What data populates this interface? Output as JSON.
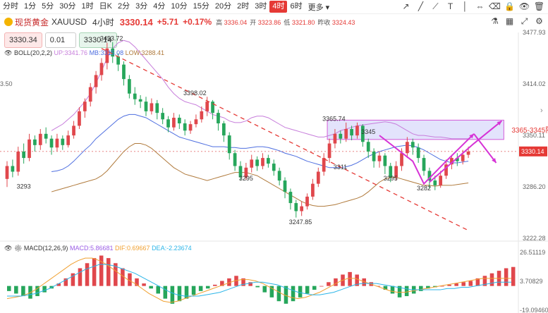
{
  "toolbar": {
    "timeframes": [
      "分时",
      "1分",
      "5分",
      "30分",
      "1时",
      "日K",
      "2分",
      "3分",
      "4分",
      "10分",
      "15分",
      "20分",
      "2时",
      "3时",
      "4时",
      "6时"
    ],
    "active_index": 14,
    "more_label": "更多",
    "tools": [
      "pen-icon",
      "line-icon",
      "ray-icon",
      "text-icon",
      "vertical-line-icon",
      "measure-icon",
      "eraser-icon",
      "lock-icon",
      "eye-icon",
      "trash-icon"
    ]
  },
  "header": {
    "symbol_name": "现货黄金",
    "symbol_code": "XAUUSD",
    "period": "4小时",
    "price": "3330.14",
    "change": "+5.71",
    "change_pct": "+0.17%",
    "ohlc": [
      {
        "label": "高",
        "value": "3336.04"
      },
      {
        "label": "开",
        "value": "3323.86"
      },
      {
        "label": "低",
        "value": "3321.80"
      },
      {
        "label": "昨收",
        "value": "3324.43"
      }
    ]
  },
  "trade": {
    "sell": "3330.34",
    "qty": "0.01",
    "buy": "3330.14"
  },
  "boll_legend": {
    "name": "BOLL(20,2,2)",
    "up": "UP:3341.76",
    "mb": "MB:3315.08",
    "low": "LOW:3288.41",
    "up_color": "#c77ddb",
    "mb_color": "#4f6fe0",
    "low_color": "#b07a3c"
  },
  "macd_legend": {
    "name": "MACD(12,26,9)",
    "macd": "MACD:5.86681",
    "dif": "DIF:0.69667",
    "dea": "DEA:-2.23674",
    "macd_color": "#9b5de5",
    "dif_color": "#f0a030",
    "dea_color": "#2bb5e8"
  },
  "chart_data": {
    "type": "candlestick",
    "price_axis": {
      "ticks": [
        "3477.93",
        "3414.02",
        "3350.11",
        "3286.20",
        "3222.28"
      ],
      "current_label": "3330.14",
      "left_partial_label": "3.50"
    },
    "price_range": [
      3222.28,
      3477.93
    ],
    "candles": [
      [
        3296,
        3312,
        3286,
        3318
      ],
      [
        3312,
        3305,
        3298,
        3320
      ],
      [
        3305,
        3330,
        3300,
        3336
      ],
      [
        3330,
        3322,
        3315,
        3340
      ],
      [
        3322,
        3345,
        3318,
        3352
      ],
      [
        3345,
        3338,
        3330,
        3350
      ],
      [
        3338,
        3352,
        3332,
        3358
      ],
      [
        3352,
        3346,
        3340,
        3360
      ],
      [
        3346,
        3335,
        3326,
        3350
      ],
      [
        3335,
        3346,
        3330,
        3352
      ],
      [
        3346,
        3338,
        3332,
        3350
      ],
      [
        3338,
        3350,
        3335,
        3356
      ],
      [
        3350,
        3362,
        3346,
        3368
      ],
      [
        3362,
        3380,
        3358,
        3385
      ],
      [
        3380,
        3392,
        3372,
        3396
      ],
      [
        3392,
        3410,
        3386,
        3415
      ],
      [
        3410,
        3425,
        3402,
        3430
      ],
      [
        3425,
        3440,
        3418,
        3446
      ],
      [
        3440,
        3458,
        3432,
        3465
      ],
      [
        3458,
        3448,
        3440,
        3466
      ],
      [
        3448,
        3438,
        3430,
        3452
      ],
      [
        3438,
        3420,
        3412,
        3442
      ],
      [
        3420,
        3402,
        3396,
        3425
      ],
      [
        3402,
        3395,
        3388,
        3410
      ],
      [
        3395,
        3392,
        3384,
        3400
      ],
      [
        3392,
        3380,
        3374,
        3398
      ],
      [
        3380,
        3390,
        3376,
        3396
      ],
      [
        3390,
        3378,
        3370,
        3394
      ],
      [
        3378,
        3370,
        3364,
        3384
      ],
      [
        3370,
        3360,
        3354,
        3374
      ],
      [
        3360,
        3372,
        3356,
        3378
      ],
      [
        3372,
        3365,
        3358,
        3376
      ],
      [
        3365,
        3356,
        3350,
        3370
      ],
      [
        3356,
        3364,
        3352,
        3368
      ],
      [
        3364,
        3370,
        3360,
        3376
      ],
      [
        3370,
        3380,
        3366,
        3386
      ],
      [
        3380,
        3392,
        3374,
        3398
      ],
      [
        3392,
        3378,
        3370,
        3394
      ],
      [
        3378,
        3365,
        3356,
        3382
      ],
      [
        3365,
        3350,
        3342,
        3368
      ],
      [
        3350,
        3328,
        3320,
        3354
      ],
      [
        3328,
        3312,
        3306,
        3332
      ],
      [
        3312,
        3298,
        3294,
        3318
      ],
      [
        3298,
        3310,
        3295,
        3316
      ],
      [
        3310,
        3320,
        3304,
        3326
      ],
      [
        3320,
        3312,
        3306,
        3324
      ],
      [
        3312,
        3322,
        3308,
        3328
      ],
      [
        3322,
        3315,
        3310,
        3326
      ],
      [
        3315,
        3306,
        3300,
        3320
      ],
      [
        3306,
        3294,
        3288,
        3310
      ],
      [
        3294,
        3280,
        3272,
        3298
      ],
      [
        3280,
        3266,
        3258,
        3284
      ],
      [
        3266,
        3256,
        3248,
        3270
      ],
      [
        3256,
        3262,
        3250,
        3268
      ],
      [
        3262,
        3274,
        3258,
        3278
      ],
      [
        3274,
        3290,
        3270,
        3296
      ],
      [
        3290,
        3305,
        3286,
        3310
      ],
      [
        3305,
        3322,
        3300,
        3328
      ],
      [
        3322,
        3340,
        3316,
        3346
      ],
      [
        3340,
        3352,
        3334,
        3358
      ],
      [
        3352,
        3346,
        3340,
        3356
      ],
      [
        3346,
        3358,
        3342,
        3366
      ],
      [
        3358,
        3350,
        3344,
        3362
      ],
      [
        3350,
        3362,
        3346,
        3366
      ],
      [
        3362,
        3342,
        3336,
        3364
      ],
      [
        3342,
        3330,
        3322,
        3346
      ],
      [
        3330,
        3318,
        3310,
        3334
      ],
      [
        3318,
        3325,
        3310,
        3330
      ],
      [
        3325,
        3312,
        3302,
        3328
      ],
      [
        3312,
        3298,
        3292,
        3316
      ],
      [
        3298,
        3312,
        3294,
        3318
      ],
      [
        3312,
        3328,
        3306,
        3334
      ],
      [
        3328,
        3342,
        3322,
        3348
      ],
      [
        3342,
        3335,
        3326,
        3346
      ],
      [
        3335,
        3322,
        3316,
        3340
      ],
      [
        3322,
        3306,
        3300,
        3326
      ],
      [
        3306,
        3294,
        3284,
        3310
      ],
      [
        3294,
        3288,
        3282,
        3300
      ],
      [
        3288,
        3300,
        3285,
        3306
      ],
      [
        3300,
        3314,
        3296,
        3320
      ],
      [
        3314,
        3322,
        3308,
        3326
      ],
      [
        3322,
        3318,
        3312,
        3328
      ],
      [
        3318,
        3326,
        3314,
        3332
      ],
      [
        3326,
        3330,
        3322,
        3336
      ]
    ],
    "boll_up": [
      3356,
      3360,
      3364,
      3370,
      3376,
      3384,
      3392,
      3402,
      3415,
      3430,
      3446,
      3458,
      3465,
      3468,
      3466,
      3460,
      3452,
      3444,
      3436,
      3428,
      3420,
      3410,
      3402,
      3396,
      3392,
      3390,
      3388,
      3384,
      3380,
      3376,
      3374,
      3372,
      3368,
      3366,
      3366,
      3368,
      3372,
      3374,
      3374,
      3372,
      3368,
      3364,
      3360,
      3358,
      3356,
      3354,
      3352,
      3350,
      3348,
      3348,
      3350,
      3352,
      3356,
      3358,
      3360,
      3362,
      3363,
      3364,
      3365,
      3366,
      3367,
      3366,
      3364,
      3360,
      3356,
      3352,
      3350,
      3350,
      3349,
      3348,
      3348,
      3347,
      3346,
      3346,
      3346,
      3346
    ],
    "boll_mid": [
      3305,
      3306,
      3308,
      3312,
      3318,
      3325,
      3332,
      3338,
      3346,
      3352,
      3358,
      3364,
      3370,
      3374,
      3376,
      3376,
      3374,
      3372,
      3368,
      3364,
      3360,
      3356,
      3352,
      3348,
      3346,
      3344,
      3342,
      3340,
      3338,
      3336,
      3336,
      3336,
      3335,
      3335,
      3334,
      3334,
      3335,
      3336,
      3336,
      3335,
      3333,
      3331,
      3328,
      3326,
      3324,
      3321,
      3318,
      3316,
      3314,
      3312,
      3310,
      3310,
      3310,
      3311,
      3313,
      3316,
      3320,
      3324,
      3327,
      3330,
      3332,
      3334,
      3336,
      3337,
      3338,
      3337,
      3335,
      3332,
      3328,
      3324,
      3320,
      3318,
      3316,
      3316,
      3317,
      3318
    ],
    "boll_low": [
      3280,
      3282,
      3284,
      3286,
      3288,
      3290,
      3292,
      3294,
      3296,
      3300,
      3306,
      3314,
      3322,
      3330,
      3336,
      3340,
      3340,
      3338,
      3334,
      3328,
      3322,
      3316,
      3310,
      3306,
      3302,
      3300,
      3298,
      3296,
      3294,
      3296,
      3298,
      3300,
      3302,
      3304,
      3304,
      3304,
      3302,
      3300,
      3296,
      3292,
      3288,
      3284,
      3280,
      3276,
      3272,
      3268,
      3265,
      3263,
      3262,
      3262,
      3263,
      3264,
      3266,
      3268,
      3270,
      3272,
      3275,
      3280,
      3286,
      3292,
      3296,
      3298,
      3298,
      3296,
      3294,
      3292,
      3290,
      3288,
      3288,
      3287,
      3288,
      3288,
      3288,
      3289,
      3290,
      3291
    ],
    "annotations": [
      {
        "label": "3453.72",
        "price": 3468,
        "bar": 18
      },
      {
        "label": "3398.02",
        "price": 3400,
        "bar": 33
      },
      {
        "label": "3293",
        "price": 3284,
        "bar": 3
      },
      {
        "label": "3295",
        "price": 3294,
        "bar": 43
      },
      {
        "label": "3247.85",
        "price": 3240,
        "bar": 52
      },
      {
        "label": "3365.74",
        "price": 3368,
        "bar": 58
      },
      {
        "label": "3345",
        "price": 3352,
        "bar": 65
      },
      {
        "label": "3311",
        "price": 3308,
        "bar": 60
      },
      {
        "label": "3295",
        "price": 3294,
        "bar": 69
      },
      {
        "label": "3282",
        "price": 3282,
        "bar": 75
      }
    ],
    "resistance_zone": {
      "label": "3365-3345阻力位",
      "top": 3369,
      "bottom": 3345,
      "color": "#d35bd8"
    },
    "trendline": {
      "from": {
        "bar": 17,
        "price": 3458
      },
      "to": {
        "bar": 83,
        "price": 3232
      },
      "color": "#e53935"
    },
    "scenario_paths": [
      [
        {
          "bar": 67,
          "price": 3350
        },
        {
          "bar": 73,
          "price": 3318
        },
        {
          "bar": 75,
          "price": 3290
        },
        {
          "bar": 79,
          "price": 3318
        },
        {
          "bar": 84,
          "price": 3352
        }
      ],
      [
        {
          "bar": 76,
          "price": 3292
        },
        {
          "bar": 84,
          "price": 3340
        },
        {
          "bar": 89,
          "price": 3368
        }
      ],
      [
        {
          "bar": 84,
          "price": 3352
        },
        {
          "bar": 88,
          "price": 3316
        }
      ]
    ],
    "macd_axis": {
      "ticks": [
        "26.51119",
        "3.70829",
        "-19.09460"
      ],
      "range": [
        -19.0946,
        26.51119
      ]
    },
    "macd_hist": [
      -4,
      -6,
      -8,
      -10,
      -8,
      -5,
      -2,
      2,
      6,
      10,
      14,
      18,
      22,
      24,
      22,
      18,
      14,
      10,
      6,
      2,
      -2,
      -6,
      -10,
      -14,
      -12,
      -10,
      -7,
      -4,
      -2,
      1,
      4,
      6,
      8,
      6,
      3,
      -1,
      -5,
      -9,
      -12,
      -14,
      -12,
      -9,
      -6,
      -3,
      0,
      3,
      6,
      9,
      11,
      9,
      6,
      3,
      0,
      -3,
      -6,
      -9,
      -8,
      -6,
      -4,
      -2,
      -1,
      0,
      1,
      2,
      3,
      4,
      6,
      8,
      10,
      12,
      14,
      15
    ],
    "macd_dif": [
      -10,
      -9,
      -8,
      -6,
      -3,
      1,
      5,
      9,
      13,
      17,
      20,
      22,
      22,
      20,
      17,
      13,
      9,
      5,
      2,
      -2,
      -6,
      -9,
      -12,
      -13,
      -12,
      -10,
      -8,
      -6,
      -4,
      -2,
      0,
      2,
      4,
      5,
      5,
      4,
      2,
      -1,
      -4,
      -7,
      -9,
      -10,
      -9,
      -7,
      -5,
      -2,
      1,
      4,
      6,
      6,
      4,
      2,
      0,
      -2,
      -4,
      -5,
      -5,
      -4,
      -3,
      -2,
      -1,
      0,
      1,
      2,
      3,
      4,
      5,
      6,
      6,
      6,
      6,
      6
    ],
    "macd_dea": [
      -8,
      -8,
      -8,
      -7,
      -6,
      -4,
      -2,
      1,
      4,
      7,
      10,
      13,
      15,
      17,
      17,
      16,
      14,
      12,
      10,
      7,
      4,
      1,
      -2,
      -5,
      -7,
      -8,
      -8,
      -8,
      -7,
      -6,
      -5,
      -3,
      -1,
      1,
      2,
      3,
      3,
      2,
      1,
      -1,
      -3,
      -5,
      -6,
      -7,
      -7,
      -6,
      -5,
      -3,
      -1,
      1,
      2,
      2,
      2,
      1,
      0,
      -1,
      -2,
      -3,
      -3,
      -3,
      -3,
      -3,
      -2,
      -2,
      -1,
      -1,
      0,
      1,
      2,
      3,
      3,
      3
    ]
  }
}
